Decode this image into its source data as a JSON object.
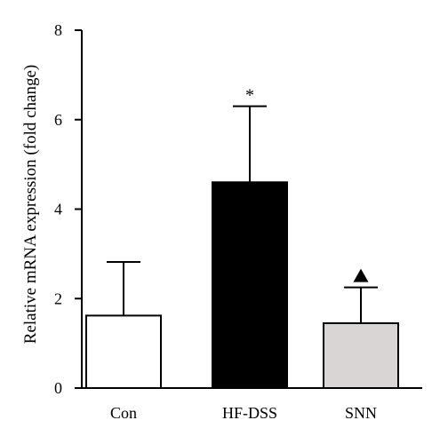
{
  "chart_data": {
    "type": "bar",
    "title": "",
    "xlabel": "",
    "ylabel": "Relative mRNA expression (fold change)",
    "ylim": [
      0,
      8
    ],
    "yticks": [
      0,
      2,
      4,
      6,
      8
    ],
    "grid": false,
    "categories": [
      "Con",
      "HF-DSS",
      "SNN"
    ],
    "values": [
      1.62,
      4.6,
      1.45
    ],
    "error_upper": [
      1.2,
      1.7,
      0.8
    ],
    "bar_colors": [
      "#ffffff",
      "#000000",
      "#d9d5d4"
    ],
    "annotations": [
      "",
      "*",
      "triangle"
    ]
  }
}
